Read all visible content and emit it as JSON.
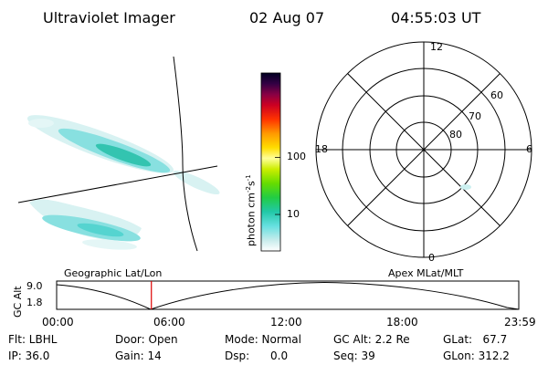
{
  "header": {
    "instrument": "Ultraviolet Imager",
    "date": "02 Aug 07",
    "time": "04:55:03 UT"
  },
  "colorbar": {
    "label": "photon cm",
    "label_exp1": "-2",
    "label_s": "s",
    "label_exp2": "-1",
    "ticks": [
      {
        "value": 100,
        "label": "100"
      },
      {
        "value": 10,
        "label": "10"
      }
    ],
    "log_range": [
      2.3,
      3000
    ]
  },
  "polar_plot": {
    "lt_labels": {
      "top": "12",
      "left": "18",
      "right": "6",
      "bottom": "0"
    },
    "lat_labels": [
      "60",
      "70",
      "80"
    ]
  },
  "timeline": {
    "left_title": "Geographic Lat/Lon",
    "right_title": "Apex MLat/MLT",
    "y_axis_label": "GC Alt",
    "y_ticks": [
      "9.0",
      "1.8"
    ],
    "x_ticks": [
      "00:00",
      "06:00",
      "12:00",
      "18:00",
      "23:59"
    ],
    "marker_time_hours": 4.92,
    "time_range_hours": [
      0,
      24
    ]
  },
  "info": {
    "filter": "Flt: LBHL",
    "ip": "IP: 36.0",
    "door": "Door: Open",
    "gain": "Gain: 14",
    "mode": "Mode: Normal",
    "dsp": "Dsp:      0.0",
    "gcalt": "GC Alt: 2.2 Re",
    "seq": "Seq: 39",
    "glat": "GLat:   67.7",
    "glon": "GLon: 312.2"
  },
  "colors": {
    "marker": "#dd0000",
    "aurora_main": "#66dddd",
    "aurora_bright": "#22bbaa",
    "aurora_faint": "#ccf0f0"
  }
}
